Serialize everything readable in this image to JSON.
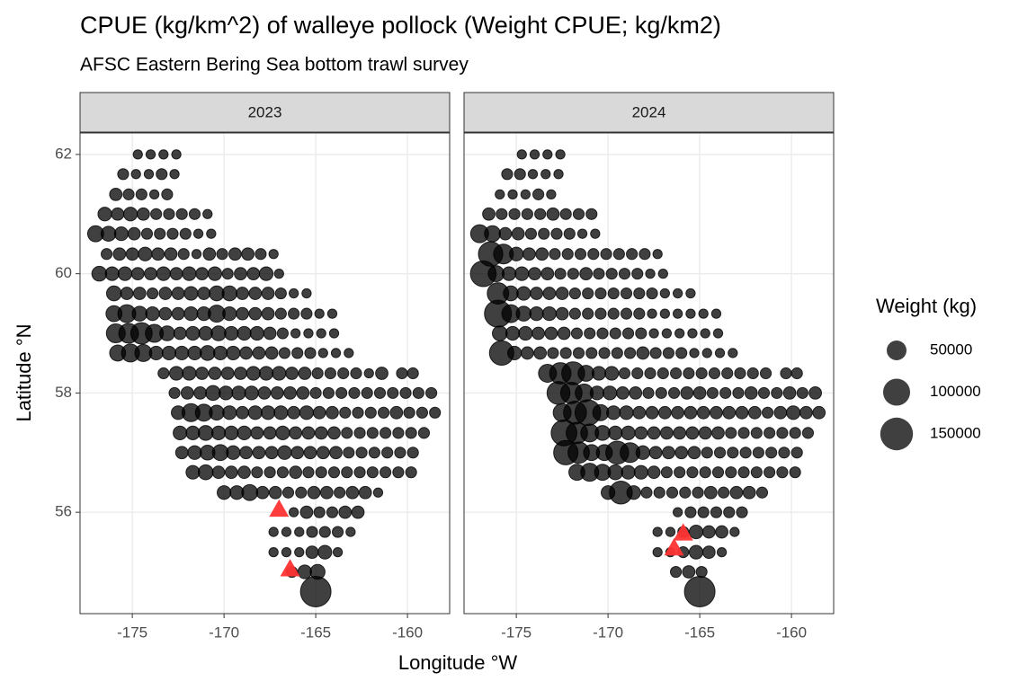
{
  "chart_data": {
    "type": "scatter",
    "title": "CPUE (kg/km^2) of walleye pollock (Weight CPUE; kg/km2)",
    "subtitle": "AFSC Eastern Bering Sea bottom trawl survey",
    "x_label": "Longitude °W",
    "y_label": "Latitude °N",
    "xlim": [
      -177.85,
      -157.7
    ],
    "ylim": [
      54.3,
      62.36
    ],
    "xticks": [
      -175,
      -170,
      -165,
      -160
    ],
    "yticks": [
      56,
      58,
      60,
      62
    ],
    "grid": true,
    "color": "#000000",
    "marker_color": "#ff3333",
    "size_legend": {
      "title": "Weight (kg)",
      "values": [
        50000,
        100000,
        150000
      ]
    },
    "x": [
      -174.7,
      -174.0,
      -173.3,
      -172.6,
      -175.5,
      -174.8,
      -174.1,
      -173.4,
      -172.7,
      -175.9,
      -175.2,
      -174.5,
      -173.8,
      -173.1,
      -176.5,
      -175.8,
      -175.1,
      -174.4,
      -173.7,
      -173.0,
      -172.3,
      -171.6,
      -170.9,
      -177.0,
      -176.3,
      -175.6,
      -174.9,
      -174.2,
      -173.5,
      -172.8,
      -172.1,
      -171.4,
      -170.7,
      -176.4,
      -175.7,
      -175.0,
      -174.3,
      -173.6,
      -172.9,
      -172.2,
      -171.5,
      -170.8,
      -170.1,
      -169.4,
      -168.7,
      -168.0,
      -167.3,
      -176.8,
      -176.1,
      -175.4,
      -174.7,
      -174.0,
      -173.3,
      -172.6,
      -171.9,
      -171.2,
      -170.5,
      -169.8,
      -169.1,
      -168.4,
      -167.7,
      -167.0,
      -176.0,
      -175.3,
      -174.6,
      -173.9,
      -173.2,
      -172.5,
      -171.8,
      -171.1,
      -170.4,
      -169.7,
      -169.0,
      -168.3,
      -167.6,
      -166.9,
      -166.2,
      -165.5,
      -176.0,
      -175.3,
      -174.6,
      -173.9,
      -173.2,
      -172.5,
      -171.8,
      -171.1,
      -170.4,
      -169.7,
      -169.0,
      -168.3,
      -167.6,
      -166.9,
      -166.2,
      -165.5,
      -164.8,
      -164.1,
      -175.9,
      -175.2,
      -174.5,
      -173.8,
      -173.1,
      -172.4,
      -171.7,
      -171.0,
      -170.3,
      -169.6,
      -168.9,
      -168.2,
      -167.5,
      -166.8,
      -166.1,
      -165.4,
      -164.7,
      -164.0,
      -175.8,
      -175.1,
      -174.4,
      -173.7,
      -173.0,
      -172.3,
      -171.6,
      -170.9,
      -170.2,
      -169.5,
      -168.8,
      -168.1,
      -167.4,
      -166.7,
      -166.0,
      -165.3,
      -164.6,
      -163.9,
      -163.2,
      -173.3,
      -172.6,
      -171.9,
      -171.2,
      -170.5,
      -169.8,
      -169.1,
      -168.4,
      -167.7,
      -167.0,
      -166.3,
      -165.6,
      -164.9,
      -164.2,
      -163.5,
      -162.8,
      -162.1,
      -161.4,
      -160.3,
      -159.7,
      -172.7,
      -172.0,
      -171.3,
      -170.6,
      -169.9,
      -169.2,
      -168.5,
      -167.8,
      -167.1,
      -166.4,
      -165.7,
      -165.0,
      -164.3,
      -163.6,
      -162.9,
      -162.2,
      -161.5,
      -160.8,
      -160.1,
      -159.4,
      -158.7,
      -172.5,
      -171.8,
      -171.1,
      -170.4,
      -169.7,
      -169.0,
      -168.3,
      -167.6,
      -166.9,
      -166.2,
      -165.5,
      -164.8,
      -164.1,
      -163.4,
      -162.7,
      -162.0,
      -161.3,
      -160.6,
      -159.9,
      -159.2,
      -158.5,
      -172.4,
      -171.7,
      -171.0,
      -170.3,
      -169.6,
      -168.9,
      -168.2,
      -167.5,
      -166.8,
      -166.1,
      -165.4,
      -164.7,
      -164.0,
      -163.3,
      -162.6,
      -161.9,
      -161.2,
      -160.5,
      -159.8,
      -159.1,
      -172.3,
      -171.6,
      -170.9,
      -170.2,
      -169.5,
      -168.8,
      -168.1,
      -167.4,
      -166.7,
      -166.0,
      -165.3,
      -164.6,
      -163.9,
      -163.2,
      -162.5,
      -161.8,
      -161.1,
      -160.4,
      -159.7,
      -171.7,
      -171.0,
      -170.3,
      -169.6,
      -168.9,
      -168.2,
      -167.5,
      -166.8,
      -166.1,
      -165.4,
      -164.7,
      -164.0,
      -163.3,
      -162.6,
      -161.9,
      -161.2,
      -160.5,
      -159.8,
      -170.0,
      -169.3,
      -168.6,
      -167.9,
      -167.2,
      -166.5,
      -165.8,
      -165.1,
      -164.4,
      -163.7,
      -163.0,
      -162.3,
      -161.6,
      -166.2,
      -165.5,
      -164.8,
      -164.1,
      -163.4,
      -162.7,
      -167.3,
      -166.6,
      -165.9,
      -165.2,
      -164.5,
      -163.8,
      -163.1,
      -167.3,
      -166.6,
      -165.9,
      -165.2,
      -164.5,
      -163.8,
      -166.3,
      -165.6,
      -164.9,
      -165.0
    ],
    "y": [
      62,
      62,
      62,
      62,
      61.67,
      61.67,
      61.67,
      61.67,
      61.67,
      61.33,
      61.33,
      61.33,
      61.33,
      61.33,
      61,
      61,
      61,
      61,
      61,
      61,
      61,
      61,
      61,
      60.67,
      60.67,
      60.67,
      60.67,
      60.67,
      60.67,
      60.67,
      60.67,
      60.67,
      60.67,
      60.33,
      60.33,
      60.33,
      60.33,
      60.33,
      60.33,
      60.33,
      60.33,
      60.33,
      60.33,
      60.33,
      60.33,
      60.33,
      60.33,
      60,
      60,
      60,
      60,
      60,
      60,
      60,
      60,
      60,
      60,
      60,
      60,
      60,
      60,
      60,
      59.67,
      59.67,
      59.67,
      59.67,
      59.67,
      59.67,
      59.67,
      59.67,
      59.67,
      59.67,
      59.67,
      59.67,
      59.67,
      59.67,
      59.67,
      59.67,
      59.33,
      59.33,
      59.33,
      59.33,
      59.33,
      59.33,
      59.33,
      59.33,
      59.33,
      59.33,
      59.33,
      59.33,
      59.33,
      59.33,
      59.33,
      59.33,
      59.33,
      59.33,
      59,
      59,
      59,
      59,
      59,
      59,
      59,
      59,
      59,
      59,
      59,
      59,
      59,
      59,
      59,
      59,
      59,
      59,
      58.67,
      58.67,
      58.67,
      58.67,
      58.67,
      58.67,
      58.67,
      58.67,
      58.67,
      58.67,
      58.67,
      58.67,
      58.67,
      58.67,
      58.67,
      58.67,
      58.67,
      58.67,
      58.67,
      58.33,
      58.33,
      58.33,
      58.33,
      58.33,
      58.33,
      58.33,
      58.33,
      58.33,
      58.33,
      58.33,
      58.33,
      58.33,
      58.33,
      58.33,
      58.33,
      58.33,
      58.33,
      58.33,
      58.33,
      58,
      58,
      58,
      58,
      58,
      58,
      58,
      58,
      58,
      58,
      58,
      58,
      58,
      58,
      58,
      58,
      58,
      58,
      58,
      58,
      58,
      57.67,
      57.67,
      57.67,
      57.67,
      57.67,
      57.67,
      57.67,
      57.67,
      57.67,
      57.67,
      57.67,
      57.67,
      57.67,
      57.67,
      57.67,
      57.67,
      57.67,
      57.67,
      57.67,
      57.67,
      57.67,
      57.33,
      57.33,
      57.33,
      57.33,
      57.33,
      57.33,
      57.33,
      57.33,
      57.33,
      57.33,
      57.33,
      57.33,
      57.33,
      57.33,
      57.33,
      57.33,
      57.33,
      57.33,
      57.33,
      57.33,
      57,
      57,
      57,
      57,
      57,
      57,
      57,
      57,
      57,
      57,
      57,
      57,
      57,
      57,
      57,
      57,
      57,
      57,
      57,
      56.67,
      56.67,
      56.67,
      56.67,
      56.67,
      56.67,
      56.67,
      56.67,
      56.67,
      56.67,
      56.67,
      56.67,
      56.67,
      56.67,
      56.67,
      56.67,
      56.67,
      56.67,
      56.33,
      56.33,
      56.33,
      56.33,
      56.33,
      56.33,
      56.33,
      56.33,
      56.33,
      56.33,
      56.33,
      56.33,
      56.33,
      56,
      56,
      56,
      56,
      56,
      56,
      55.67,
      55.67,
      55.67,
      55.67,
      55.67,
      55.67,
      55.67,
      55.33,
      55.33,
      55.33,
      55.33,
      55.33,
      55.33,
      55,
      55,
      55,
      54.67
    ],
    "series": [
      {
        "name": "2023",
        "sizes": [
          5000,
          5000,
          5000,
          5000,
          10000,
          5000,
          5000,
          10000,
          5000,
          15000,
          10000,
          10000,
          5000,
          10000,
          20000,
          15000,
          20000,
          15000,
          10000,
          10000,
          10000,
          10000,
          5000,
          30000,
          25000,
          20000,
          15000,
          10000,
          10000,
          10000,
          10000,
          5000,
          5000,
          10000,
          15000,
          15000,
          20000,
          15000,
          15000,
          10000,
          5000,
          15000,
          10000,
          15000,
          15000,
          10000,
          5000,
          25000,
          20000,
          20000,
          15000,
          15000,
          20000,
          15000,
          20000,
          15000,
          20000,
          10000,
          15000,
          15000,
          20000,
          5000,
          25000,
          15000,
          15000,
          10000,
          15000,
          15000,
          20000,
          15000,
          25000,
          25000,
          15000,
          15000,
          15000,
          10000,
          5000,
          5000,
          30000,
          40000,
          25000,
          20000,
          15000,
          15000,
          20000,
          20000,
          35000,
          20000,
          15000,
          15000,
          15000,
          10000,
          10000,
          10000,
          5000,
          5000,
          45000,
          50000,
          60000,
          40000,
          25000,
          15000,
          20000,
          20000,
          25000,
          20000,
          20000,
          20000,
          15000,
          10000,
          5000,
          5000,
          5000,
          5000,
          30000,
          40000,
          35000,
          20000,
          20000,
          20000,
          20000,
          25000,
          20000,
          20000,
          15000,
          15000,
          15000,
          10000,
          10000,
          10000,
          5000,
          5000,
          5000,
          10000,
          20000,
          20000,
          15000,
          15000,
          15000,
          15000,
          20000,
          20000,
          20000,
          15000,
          15000,
          10000,
          10000,
          10000,
          10000,
          5000,
          15000,
          10000,
          10000,
          10000,
          15000,
          15000,
          25000,
          20000,
          20000,
          20000,
          15000,
          15000,
          15000,
          15000,
          10000,
          10000,
          10000,
          10000,
          10000,
          10000,
          10000,
          10000,
          10000,
          10000,
          20000,
          40000,
          35000,
          25000,
          20000,
          15000,
          20000,
          20000,
          20000,
          15000,
          20000,
          15000,
          15000,
          10000,
          10000,
          10000,
          10000,
          15000,
          10000,
          10000,
          10000,
          20000,
          20000,
          25000,
          20000,
          20000,
          20000,
          15000,
          15000,
          20000,
          15000,
          15000,
          15000,
          15000,
          10000,
          10000,
          10000,
          10000,
          10000,
          10000,
          10000,
          15000,
          20000,
          25000,
          30000,
          20000,
          15000,
          15000,
          15000,
          20000,
          15000,
          15000,
          15000,
          15000,
          10000,
          10000,
          10000,
          10000,
          10000,
          10000,
          20000,
          25000,
          15000,
          15000,
          15000,
          10000,
          10000,
          10000,
          15000,
          10000,
          10000,
          10000,
          10000,
          10000,
          10000,
          10000,
          10000,
          10000,
          20000,
          20000,
          30000,
          15000,
          15000,
          10000,
          10000,
          15000,
          15000,
          10000,
          15000,
          15000,
          5000,
          5000,
          15000,
          10000,
          10000,
          15000,
          15000,
          5000,
          5000,
          5000,
          10000,
          10000,
          10000,
          5000,
          5000,
          5000,
          5000,
          15000,
          20000,
          5000,
          10000,
          20000,
          25000,
          130000
        ],
        "markers": {
          "x": [
            -167.0,
            -166.4
          ],
          "y": [
            56.05,
            55.05
          ]
        }
      },
      {
        "name": "2024",
        "sizes": [
          5000,
          5000,
          5000,
          5000,
          10000,
          10000,
          5000,
          5000,
          5000,
          5000,
          5000,
          5000,
          10000,
          5000,
          15000,
          10000,
          10000,
          10000,
          10000,
          15000,
          10000,
          10000,
          10000,
          40000,
          30000,
          15000,
          15000,
          10000,
          10000,
          10000,
          10000,
          5000,
          5000,
          80000,
          50000,
          20000,
          15000,
          15000,
          10000,
          10000,
          10000,
          10000,
          10000,
          10000,
          10000,
          10000,
          5000,
          90000,
          30000,
          20000,
          20000,
          15000,
          15000,
          10000,
          10000,
          15000,
          10000,
          10000,
          10000,
          10000,
          5000,
          5000,
          60000,
          25000,
          20000,
          15000,
          15000,
          15000,
          10000,
          10000,
          10000,
          10000,
          10000,
          10000,
          10000,
          5000,
          5000,
          5000,
          100000,
          40000,
          25000,
          20000,
          20000,
          15000,
          10000,
          10000,
          10000,
          10000,
          10000,
          10000,
          5000,
          5000,
          5000,
          5000,
          5000,
          5000,
          25000,
          20000,
          20000,
          15000,
          15000,
          15000,
          10000,
          10000,
          10000,
          10000,
          10000,
          10000,
          5000,
          5000,
          5000,
          5000,
          5000,
          5000,
          80000,
          20000,
          15000,
          15000,
          10000,
          10000,
          10000,
          10000,
          10000,
          10000,
          10000,
          15000,
          10000,
          10000,
          10000,
          5000,
          5000,
          5000,
          5000,
          40000,
          60000,
          70000,
          30000,
          20000,
          20000,
          10000,
          10000,
          10000,
          10000,
          10000,
          10000,
          10000,
          10000,
          10000,
          10000,
          10000,
          10000,
          10000,
          10000,
          70000,
          60000,
          40000,
          20000,
          20000,
          15000,
          15000,
          10000,
          10000,
          10000,
          15000,
          15000,
          10000,
          10000,
          10000,
          15000,
          10000,
          10000,
          15000,
          10000,
          15000,
          40000,
          70000,
          90000,
          30000,
          20000,
          20000,
          15000,
          15000,
          15000,
          15000,
          15000,
          15000,
          15000,
          15000,
          15000,
          15000,
          10000,
          15000,
          20000,
          15000,
          15000,
          90000,
          60000,
          40000,
          25000,
          20000,
          20000,
          15000,
          15000,
          15000,
          15000,
          15000,
          15000,
          15000,
          10000,
          10000,
          10000,
          10000,
          10000,
          10000,
          10000,
          80000,
          60000,
          30000,
          30000,
          70000,
          50000,
          20000,
          15000,
          15000,
          15000,
          15000,
          10000,
          10000,
          10000,
          10000,
          10000,
          10000,
          10000,
          10000,
          30000,
          40000,
          30000,
          25000,
          20000,
          20000,
          15000,
          10000,
          10000,
          10000,
          10000,
          10000,
          10000,
          10000,
          10000,
          10000,
          10000,
          10000,
          20000,
          70000,
          20000,
          10000,
          10000,
          10000,
          10000,
          10000,
          15000,
          10000,
          15000,
          15000,
          10000,
          5000,
          10000,
          10000,
          10000,
          10000,
          10000,
          5000,
          5000,
          10000,
          20000,
          15000,
          15000,
          5000,
          5000,
          5000,
          10000,
          20000,
          15000,
          5000,
          10000,
          15000,
          10000,
          130000
        ],
        "markers": {
          "x": [
            -165.9,
            -166.4
          ],
          "y": [
            55.65,
            55.4
          ]
        }
      }
    ]
  }
}
